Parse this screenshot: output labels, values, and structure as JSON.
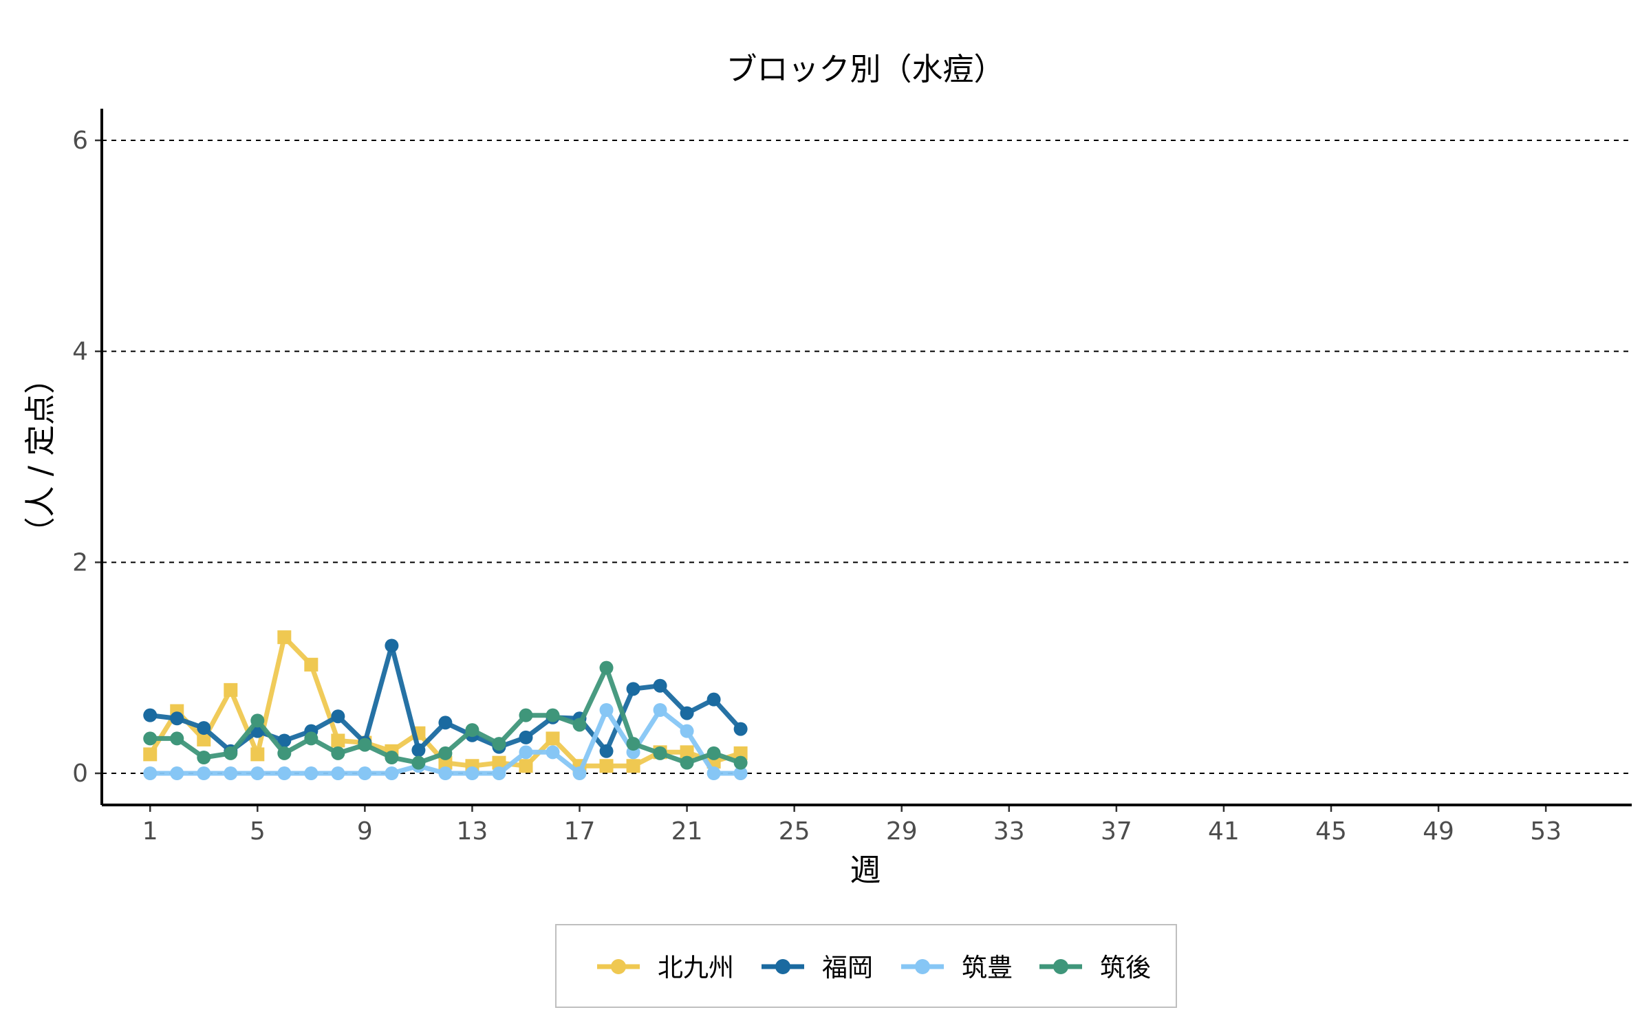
{
  "chart_data": {
    "type": "line",
    "title": "ブロック別（水痘）",
    "xlabel": "週",
    "ylabel": "（人 / 定点）",
    "xlim": [
      -0.8,
      56.2
    ],
    "ylim": [
      -0.3,
      6.3
    ],
    "x_ticks": [
      1,
      5,
      9,
      13,
      17,
      21,
      25,
      29,
      33,
      37,
      41,
      45,
      49,
      53
    ],
    "y_ticks": [
      0,
      2,
      4,
      6
    ],
    "grid": "horizontal-dashed",
    "legend_position": "bottom",
    "series": [
      {
        "name": "北九州",
        "color": "#EFC851",
        "marker": "square",
        "x": [
          1,
          2,
          3,
          4,
          5,
          6,
          7,
          8,
          9,
          10,
          11,
          12,
          13,
          14,
          15,
          16,
          17,
          18,
          19,
          20,
          21,
          22,
          23
        ],
        "values": [
          0.18,
          0.59,
          0.32,
          0.79,
          0.18,
          1.29,
          1.03,
          0.31,
          0.29,
          0.21,
          0.38,
          0.1,
          0.07,
          0.1,
          0.07,
          0.33,
          0.07,
          0.07,
          0.07,
          0.2,
          0.2,
          0.11,
          0.19
        ]
      },
      {
        "name": "福岡",
        "color": "#1A6AA0",
        "marker": "circle",
        "x": [
          1,
          2,
          3,
          4,
          5,
          6,
          7,
          8,
          9,
          10,
          11,
          12,
          13,
          14,
          15,
          16,
          17,
          18,
          19,
          20,
          21,
          22,
          23
        ],
        "values": [
          0.55,
          0.52,
          0.43,
          0.21,
          0.4,
          0.31,
          0.4,
          0.54,
          0.29,
          1.21,
          0.22,
          0.48,
          0.36,
          0.25,
          0.34,
          0.53,
          0.52,
          0.21,
          0.8,
          0.83,
          0.57,
          0.7,
          0.42
        ]
      },
      {
        "name": "筑豊",
        "color": "#86C6F5",
        "marker": "circle",
        "x": [
          1,
          2,
          3,
          4,
          5,
          6,
          7,
          8,
          9,
          10,
          11,
          12,
          13,
          14,
          15,
          16,
          17,
          18,
          19,
          20,
          21,
          22,
          23
        ],
        "values": [
          0,
          0,
          0,
          0,
          0,
          0,
          0,
          0,
          0,
          0,
          0.07,
          0,
          0,
          0,
          0.2,
          0.2,
          0,
          0.6,
          0.2,
          0.6,
          0.4,
          0,
          0
        ]
      },
      {
        "name": "筑後",
        "color": "#3F967A",
        "marker": "circle",
        "x": [
          1,
          2,
          3,
          4,
          5,
          6,
          7,
          8,
          9,
          10,
          11,
          12,
          13,
          14,
          15,
          16,
          17,
          18,
          19,
          20,
          21,
          22,
          23
        ],
        "values": [
          0.33,
          0.33,
          0.15,
          0.19,
          0.5,
          0.19,
          0.33,
          0.19,
          0.27,
          0.15,
          0.1,
          0.19,
          0.41,
          0.28,
          0.55,
          0.55,
          0.46,
          1.0,
          0.28,
          0.19,
          0.1,
          0.19,
          0.1
        ]
      }
    ]
  }
}
